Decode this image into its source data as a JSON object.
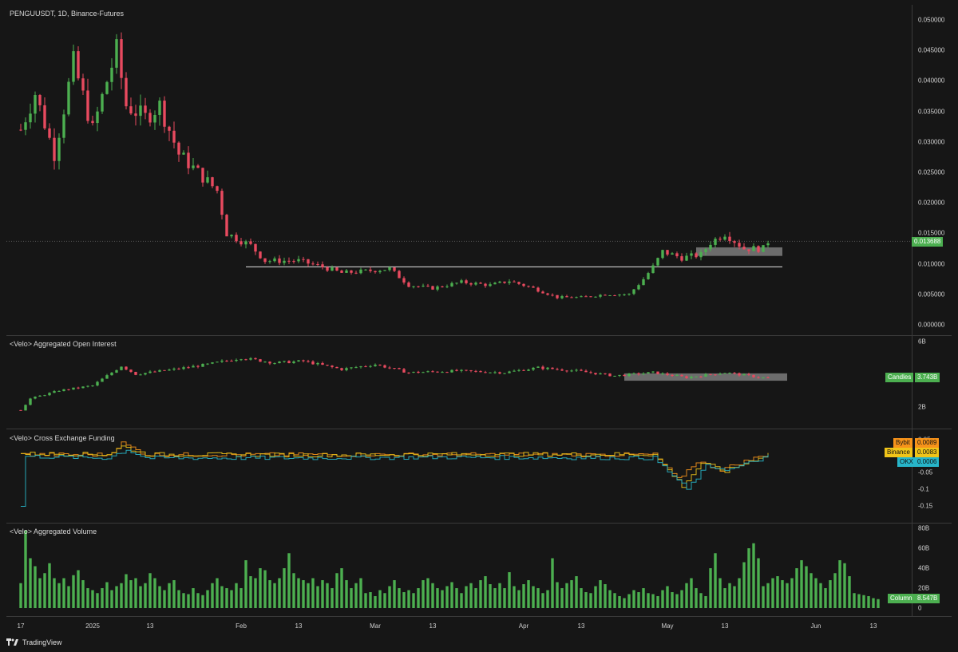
{
  "chart_data": [
    {
      "type": "candlestick",
      "title": "PENGUUSDT, 1D, Binance-Futures",
      "y_ticks": [
        "0.050000",
        "0.045000",
        "0.040000",
        "0.035000",
        "0.030000",
        "0.025000",
        "0.020000",
        "0.015000",
        "0.010000",
        "0.005000",
        "0.000000"
      ],
      "ylim": [
        0,
        0.05
      ],
      "last_price": "0.013688",
      "support_level": 0.0095,
      "consolidation_zone": [
        0.0113,
        0.0127
      ],
      "close_path": [
        {
          "d": "2024-12-17",
          "c": 0.032
        },
        {
          "d": "2024-12-20",
          "c": 0.038
        },
        {
          "d": "2024-12-24",
          "c": 0.028
        },
        {
          "d": "2024-12-28",
          "c": 0.043
        },
        {
          "d": "2025-01-01",
          "c": 0.032
        },
        {
          "d": "2025-01-04",
          "c": 0.04
        },
        {
          "d": "2025-01-06",
          "c": 0.045
        },
        {
          "d": "2025-01-08",
          "c": 0.036
        },
        {
          "d": "2025-01-12",
          "c": 0.034
        },
        {
          "d": "2025-01-15",
          "c": 0.036
        },
        {
          "d": "2025-01-19",
          "c": 0.028
        },
        {
          "d": "2025-01-23",
          "c": 0.025
        },
        {
          "d": "2025-01-27",
          "c": 0.022
        },
        {
          "d": "2025-01-29",
          "c": 0.015
        },
        {
          "d": "2025-02-03",
          "c": 0.013
        },
        {
          "d": "2025-02-06",
          "c": 0.0105
        },
        {
          "d": "2025-02-13",
          "c": 0.0105
        },
        {
          "d": "2025-02-18",
          "c": 0.0095
        },
        {
          "d": "2025-02-22",
          "c": 0.0085
        },
        {
          "d": "2025-02-27",
          "c": 0.0088
        },
        {
          "d": "2025-03-04",
          "c": 0.0092
        },
        {
          "d": "2025-03-08",
          "c": 0.0065
        },
        {
          "d": "2025-03-13",
          "c": 0.006
        },
        {
          "d": "2025-03-19",
          "c": 0.007
        },
        {
          "d": "2025-03-25",
          "c": 0.0065
        },
        {
          "d": "2025-03-29",
          "c": 0.0072
        },
        {
          "d": "2025-04-03",
          "c": 0.006
        },
        {
          "d": "2025-04-08",
          "c": 0.0045
        },
        {
          "d": "2025-04-13",
          "c": 0.0045
        },
        {
          "d": "2025-04-18",
          "c": 0.005
        },
        {
          "d": "2025-04-23",
          "c": 0.005
        },
        {
          "d": "2025-04-26",
          "c": 0.0075
        },
        {
          "d": "2025-04-28",
          "c": 0.0095
        },
        {
          "d": "2025-04-30",
          "c": 0.012
        },
        {
          "d": "2025-05-04",
          "c": 0.011
        },
        {
          "d": "2025-05-08",
          "c": 0.0115
        },
        {
          "d": "2025-05-10",
          "c": 0.0135
        },
        {
          "d": "2025-05-13",
          "c": 0.015
        },
        {
          "d": "2025-05-17",
          "c": 0.0125
        },
        {
          "d": "2025-05-21",
          "c": 0.0125
        },
        {
          "d": "2025-05-22",
          "c": 0.0137
        }
      ]
    },
    {
      "type": "candlestick",
      "title": "<Velo> Aggregated Open Interest",
      "y_ticks": [
        "6B",
        "2B"
      ],
      "ylim": [
        1.5,
        6
      ],
      "badge": {
        "label": "Candles",
        "value": "3.743B"
      },
      "consolidation_zone": [
        3.6,
        4.05
      ],
      "close_path": [
        {
          "d": "2024-12-17",
          "c": 1.8
        },
        {
          "d": "2024-12-19",
          "c": 2.5
        },
        {
          "d": "2024-12-25",
          "c": 3.0
        },
        {
          "d": "2025-01-01",
          "c": 3.3
        },
        {
          "d": "2025-01-07",
          "c": 4.5
        },
        {
          "d": "2025-01-10",
          "c": 4.0
        },
        {
          "d": "2025-01-18",
          "c": 4.3
        },
        {
          "d": "2025-01-25",
          "c": 4.6
        },
        {
          "d": "2025-02-01",
          "c": 5.0
        },
        {
          "d": "2025-02-08",
          "c": 4.7
        },
        {
          "d": "2025-02-14",
          "c": 4.8
        },
        {
          "d": "2025-02-22",
          "c": 4.3
        },
        {
          "d": "2025-03-01",
          "c": 4.6
        },
        {
          "d": "2025-03-08",
          "c": 4.1
        },
        {
          "d": "2025-03-18",
          "c": 4.2
        },
        {
          "d": "2025-03-28",
          "c": 4.1
        },
        {
          "d": "2025-04-04",
          "c": 4.4
        },
        {
          "d": "2025-04-12",
          "c": 4.2
        },
        {
          "d": "2025-04-20",
          "c": 3.9
        },
        {
          "d": "2025-04-28",
          "c": 4.1
        },
        {
          "d": "2025-05-05",
          "c": 3.8
        },
        {
          "d": "2025-05-13",
          "c": 4.1
        },
        {
          "d": "2025-05-22",
          "c": 3.743
        }
      ]
    },
    {
      "type": "line",
      "title": "<Velo> Cross Exchange Funding",
      "y_ticks": [
        "0.05",
        "0",
        "-0.05",
        "-0.1",
        "-0.15"
      ],
      "ylim": [
        -0.17,
        0.065
      ],
      "series": [
        {
          "name": "Bybit",
          "value": "0.0089",
          "color": "#f7931a",
          "points": [
            {
              "d": "2024-12-17",
              "v": 0.005
            },
            {
              "d": "2025-01-04",
              "v": 0.005
            },
            {
              "d": "2025-01-07",
              "v": 0.04
            },
            {
              "d": "2025-01-12",
              "v": 0.005
            },
            {
              "d": "2025-02-15",
              "v": 0.005
            },
            {
              "d": "2025-03-15",
              "v": 0.005
            },
            {
              "d": "2025-04-28",
              "v": 0.005
            },
            {
              "d": "2025-05-03",
              "v": -0.07
            },
            {
              "d": "2025-05-07",
              "v": -0.015
            },
            {
              "d": "2025-05-12",
              "v": -0.04
            },
            {
              "d": "2025-05-22",
              "v": 0.0089
            }
          ]
        },
        {
          "name": "Binance",
          "value": "0.0083",
          "color": "#f0c419",
          "points": [
            {
              "d": "2024-12-17",
              "v": 0.008
            },
            {
              "d": "2025-01-04",
              "v": 0.006
            },
            {
              "d": "2025-01-07",
              "v": 0.03
            },
            {
              "d": "2025-01-12",
              "v": 0.006
            },
            {
              "d": "2025-02-15",
              "v": 0.004
            },
            {
              "d": "2025-03-15",
              "v": 0.006
            },
            {
              "d": "2025-04-28",
              "v": 0.006
            },
            {
              "d": "2025-05-04",
              "v": -0.09
            },
            {
              "d": "2025-05-08",
              "v": -0.02
            },
            {
              "d": "2025-05-13",
              "v": -0.045
            },
            {
              "d": "2025-05-22",
              "v": 0.0083
            }
          ]
        },
        {
          "name": "OKX",
          "value": "0.0006",
          "color": "#27b5c9",
          "points": [
            {
              "d": "2024-12-17",
              "v": -0.15
            },
            {
              "d": "2024-12-18",
              "v": 0.0
            },
            {
              "d": "2025-01-04",
              "v": -0.005
            },
            {
              "d": "2025-01-08",
              "v": 0.02
            },
            {
              "d": "2025-01-12",
              "v": -0.005
            },
            {
              "d": "2025-02-15",
              "v": -0.005
            },
            {
              "d": "2025-03-15",
              "v": -0.003
            },
            {
              "d": "2025-04-28",
              "v": -0.005
            },
            {
              "d": "2025-05-05",
              "v": -0.1
            },
            {
              "d": "2025-05-09",
              "v": -0.03
            },
            {
              "d": "2025-05-14",
              "v": -0.04
            },
            {
              "d": "2025-05-22",
              "v": 0.0006
            }
          ]
        }
      ]
    },
    {
      "type": "bar",
      "title": "<Velo> Aggregated Volume",
      "y_ticks": [
        "80B",
        "60B",
        "40B",
        "20B",
        "0"
      ],
      "ylim": [
        0,
        80
      ],
      "badge": {
        "label": "Column",
        "value": "8.547B"
      },
      "bars_B": [
        25,
        78,
        50,
        42,
        30,
        35,
        45,
        30,
        25,
        30,
        22,
        33,
        38,
        28,
        20,
        18,
        15,
        20,
        26,
        18,
        22,
        25,
        34,
        28,
        30,
        22,
        25,
        35,
        30,
        22,
        18,
        25,
        28,
        18,
        15,
        14,
        20,
        15,
        13,
        18,
        25,
        30,
        22,
        20,
        18,
        25,
        20,
        48,
        32,
        30,
        40,
        38,
        28,
        25,
        30,
        40,
        55,
        35,
        30,
        28,
        25,
        30,
        22,
        28,
        25,
        20,
        35,
        40,
        28,
        20,
        25,
        30,
        15,
        16,
        12,
        18,
        15,
        22,
        28,
        20,
        16,
        18,
        15,
        20,
        28,
        30,
        25,
        20,
        18,
        22,
        26,
        20,
        15,
        22,
        25,
        20,
        28,
        32,
        24,
        20,
        25,
        20,
        36,
        22,
        18,
        24,
        28,
        22,
        20,
        15,
        18,
        50,
        26,
        20,
        25,
        28,
        32,
        20,
        16,
        15,
        22,
        28,
        24,
        18,
        15,
        12,
        10,
        14,
        18,
        16,
        20,
        15,
        14,
        12,
        18,
        22,
        16,
        14,
        18,
        25,
        30,
        20,
        15,
        12,
        40,
        55,
        30,
        20,
        25,
        22,
        30,
        46,
        60,
        65,
        50,
        22,
        25,
        30,
        32,
        28,
        25,
        30,
        40,
        48,
        42,
        35,
        30,
        25,
        20,
        28,
        35,
        48,
        45,
        32,
        15,
        14,
        13,
        12,
        10,
        9
      ],
      "color": "#4caf50"
    }
  ],
  "x_axis": {
    "range": [
      "2024-12-14",
      "2025-06-21"
    ],
    "ticks": [
      {
        "d": "2024-12-17",
        "label": "17"
      },
      {
        "d": "2025-01-01",
        "label": "2025"
      },
      {
        "d": "2025-01-13",
        "label": "13"
      },
      {
        "d": "2025-02-01",
        "label": "Feb"
      },
      {
        "d": "2025-02-13",
        "label": "13"
      },
      {
        "d": "2025-03-01",
        "label": "Mar"
      },
      {
        "d": "2025-03-13",
        "label": "13"
      },
      {
        "d": "2025-04-01",
        "label": "Apr"
      },
      {
        "d": "2025-04-13",
        "label": "13"
      },
      {
        "d": "2025-05-01",
        "label": "May"
      },
      {
        "d": "2025-05-13",
        "label": "13"
      },
      {
        "d": "2025-06-01",
        "label": "Jun"
      },
      {
        "d": "2025-06-13",
        "label": "13"
      }
    ]
  },
  "colors": {
    "up": "#4caf50",
    "down": "#e84a5f",
    "zone": "#8a8a8a"
  },
  "branding": "TradingView"
}
